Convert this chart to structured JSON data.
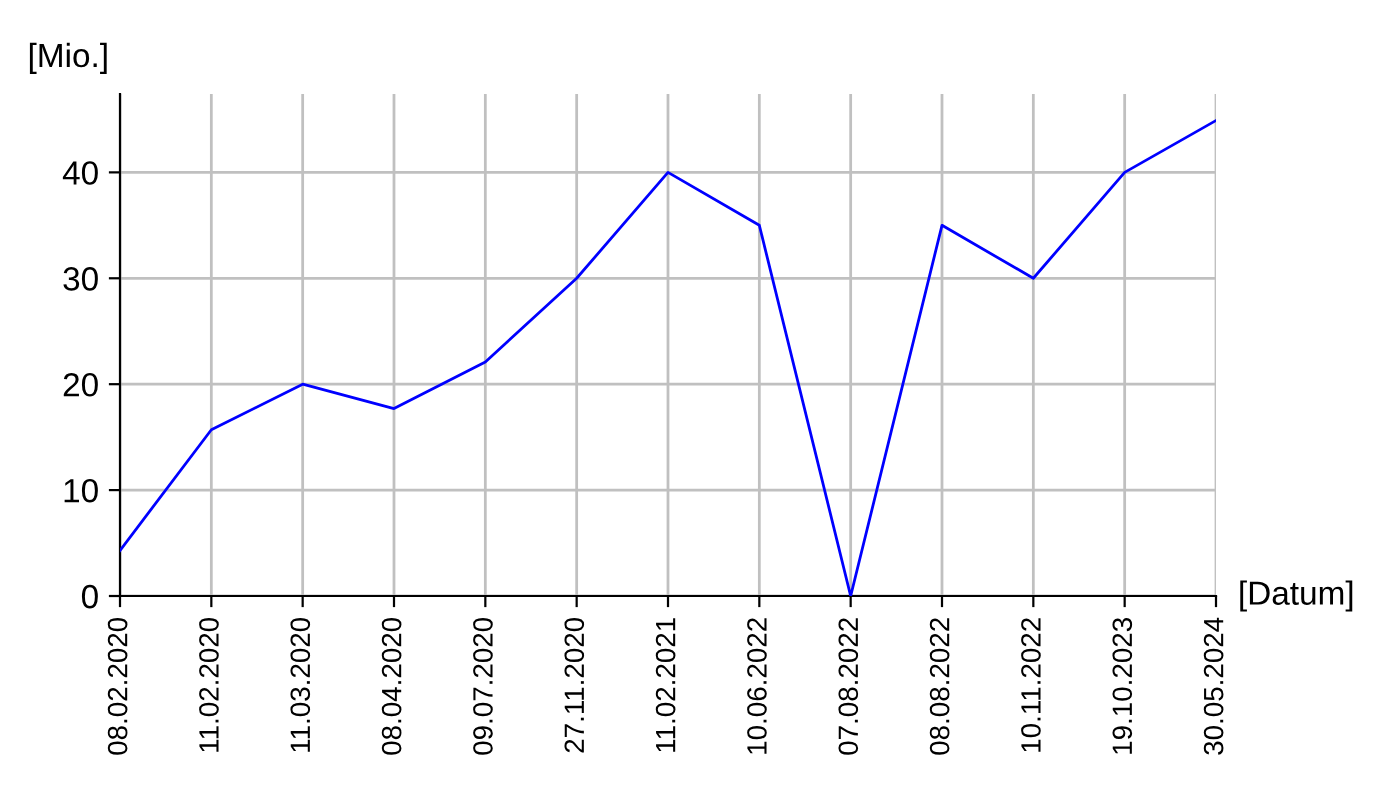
{
  "chart_data": {
    "type": "line",
    "xlabel": "[Datum]",
    "ylabel": "[Mio.]",
    "categories": [
      "08.02.2020",
      "11.02.2020",
      "11.03.2020",
      "08.04.2020",
      "09.07.2020",
      "27.11.2020",
      "11.02.2021",
      "10.06.2022",
      "07.08.2022",
      "08.08.2022",
      "10.11.2022",
      "19.10.2023",
      "30.05.2024"
    ],
    "series": [
      {
        "color": "#0000ff",
        "values": [
          4.3,
          15.7,
          20,
          17.7,
          22.1,
          30,
          40,
          35,
          0,
          35,
          30,
          40,
          44.9
        ]
      }
    ],
    "ylim": [
      0,
      47.4
    ],
    "yticks": [
      0,
      10,
      20,
      30,
      40
    ],
    "grid": true,
    "marker": "none",
    "line_style": "solid",
    "legend": false
  }
}
